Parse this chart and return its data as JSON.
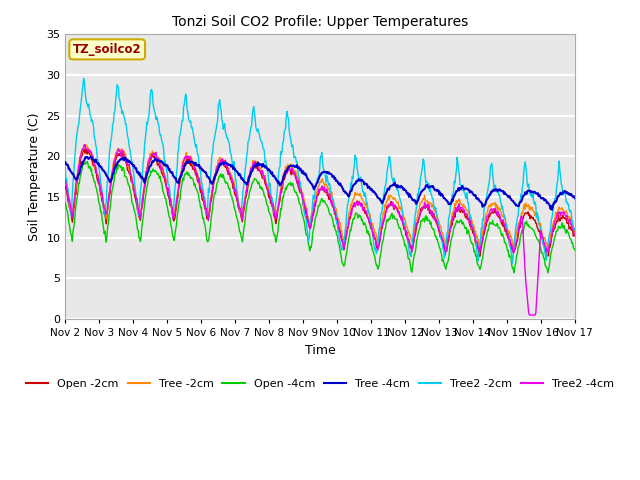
{
  "title": "Tonzi Soil CO2 Profile: Upper Temperatures",
  "xlabel": "Time",
  "ylabel": "Soil Temperature (C)",
  "ylim": [
    0,
    35
  ],
  "xlim_days": [
    2,
    17
  ],
  "plot_bg_color": "#e8e8e8",
  "grid_color": "white",
  "label_box_text": "TZ_soilco2",
  "label_box_bg": "#ffffcc",
  "label_box_edge": "#ccaa00",
  "label_box_text_color": "#990000",
  "series": {
    "Open -2cm": {
      "color": "#cc0000",
      "lw": 1.0
    },
    "Tree -2cm": {
      "color": "#ff8800",
      "lw": 1.0
    },
    "Open -4cm": {
      "color": "#00cc00",
      "lw": 1.0
    },
    "Tree -4cm": {
      "color": "#0000cc",
      "lw": 1.5
    },
    "Tree2 -2cm": {
      "color": "#00ccee",
      "lw": 1.0
    },
    "Tree2 -4cm": {
      "color": "#ee00ee",
      "lw": 1.0
    }
  },
  "xtick_labels": [
    "Nov 2",
    "Nov 3",
    "Nov 4",
    "Nov 5",
    "Nov 6",
    "Nov 7",
    "Nov 8",
    "Nov 9",
    "Nov 10",
    "Nov 11",
    "Nov 12",
    "Nov 13",
    "Nov 14",
    "Nov 15",
    "Nov 16",
    "Nov 17"
  ],
  "xtick_positions": [
    2,
    3,
    4,
    5,
    6,
    7,
    8,
    9,
    10,
    11,
    12,
    13,
    14,
    15,
    16,
    17
  ],
  "figsize": [
    6.4,
    4.8
  ],
  "dpi": 100
}
